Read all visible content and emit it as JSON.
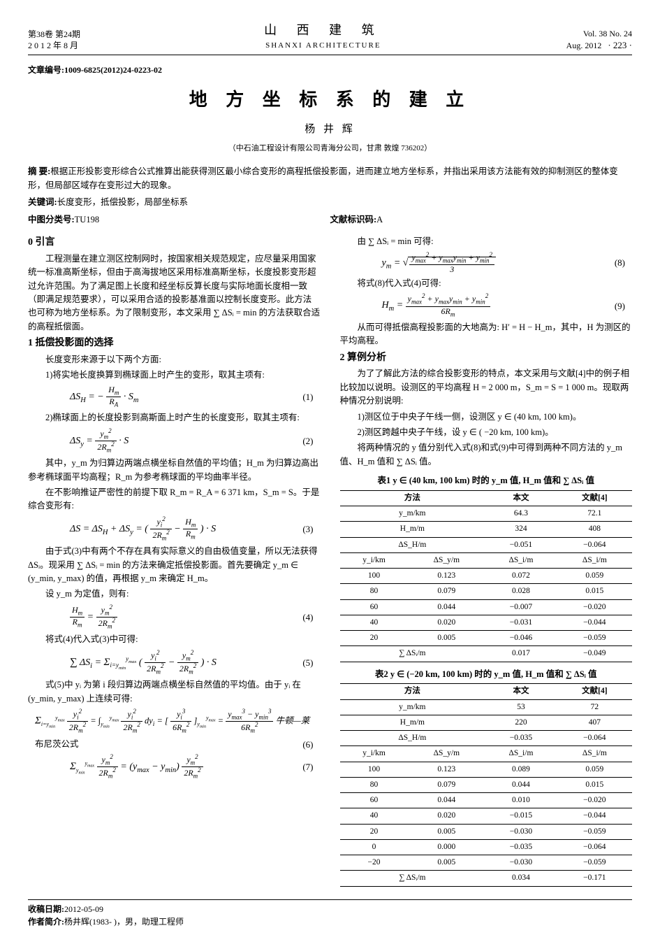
{
  "header": {
    "vol_cn_l1": "第38卷 第24期",
    "vol_cn_l2": "2 0 1 2 年 8 月",
    "journal_cn": "山 西 建 筑",
    "journal_en": "SHANXI  ARCHITECTURE",
    "vol_en_l1": "Vol. 38 No. 24",
    "vol_en_l2": "Aug.  2012",
    "page": "· 223 ·"
  },
  "article_id": "文章编号:1009-6825(2012)24-0223-02",
  "title": "地 方 坐 标 系 的 建 立",
  "author": "杨 井 辉",
  "affiliation": "（中石油工程设计有限公司青海分公司，甘肃 敦煌  736202）",
  "abstract_label": "摘  要:",
  "abstract_text": "根据正形投影变形综合公式推算出能获得测区最小综合变形的高程抵偿投影面，进而建立地方坐标系，并指出采用该方法能有效的抑制测区的整体变形，但局部区域存在变形过大的现象。",
  "keywords_label": "关键词:",
  "keywords": "长度变形，抵偿投影，局部坐标系",
  "clc_label": "中图分类号:",
  "clc": "TU198",
  "doc_code_label": "文献标识码:",
  "doc_code": "A",
  "sec0_title": "0  引言",
  "sec0_p1": "工程测量在建立测区控制网时，按国家相关规范规定，应尽量采用国家统一标准高斯坐标，但由于高海拔地区采用标准高斯坐标，长度投影变形超过允许范围。为了满足图上长度和经坐标反算长度与实际地面长度相一致（即满足规范要求），可以采用合适的投影基准面以控制长度变形。此方法也可称为地方坐标系。为了限制变形，本文采用 ∑ ΔSᵢ = min 的方法获取合适的高程抵偿面。",
  "sec1_title": "1  抵偿投影面的选择",
  "sec1_p1": "长度变形来源于以下两个方面:",
  "sec1_p2": "1)将实地长度换算到椭球面上时产生的变形，取其主项有:",
  "eq1": {
    "text": "ΔS_H = − (H_m / R_A) · S_m",
    "num": "(1)"
  },
  "sec1_p3": "2)椭球面上的长度投影到高斯面上时产生的长度变形，取其主项有:",
  "eq2": {
    "text": "ΔS_y = (y_m² / 2R_m²) · S",
    "num": "(2)"
  },
  "sec1_p4": "其中，y_m 为归算边两端点横坐标自然值的平均值；H_m 为归算边高出参考椭球面平均高程；R_m 为参考椭球面的平均曲率半径。",
  "sec1_p5": "在不影响推证严密性的前提下取 R_m = R_A = 6 371 km，S_m = S。于是综合变形有:",
  "eq3": {
    "text": "ΔS = ΔS_H + ΔS_y = ( y_i² / 2R_m² − H_m / R_m ) · S",
    "num": "(3)"
  },
  "sec1_p6": "由于式(3)中有两个不存在具有实际意义的自由极值变量，所以无法获得 ΔSᵢ。现采用 ∑ ΔSᵢ = min 的方法来确定抵偿投影面。首先要确定 y_m ∈ (y_min, y_max) 的值，再根据 y_m 来确定 H_m。",
  "sec1_p7": "设 y_m 为定值，则有:",
  "eq4": {
    "text": "H_m / R_m = y_m² / 2R_m²",
    "num": "(4)"
  },
  "sec1_p8": "将式(4)代入式(3)中可得:",
  "eq5": {
    "text": "∑ ΔSᵢ = Σ_{i=y_min}^{y_max} ( y_i² / 2R_m² − y_m² / 2R_m² ) · S",
    "num": "(5)"
  },
  "sec1_p9": "式(5)中 yᵢ 为第 i 段归算边两端点横坐标自然值的平均值。由于 yᵢ 在 (y_min, y_max) 上连续可得:",
  "eq6": {
    "text": "Σ_{i=y_min}^{y_max} y_i²/2R_m² = ∫_{y_min}^{y_max} y_i²/2R_m² dy_i = [ y_i³/6R_m² ]_{y_min}^{y_max} = (y_max³ − y_min³)/6R_m²  牛顿—莱布尼茨公式",
    "num": "(6)"
  },
  "eq7": {
    "text": "Σ_{y_min}^{y_max} y_m²/2R_m² = (y_max − y_min) y_m²/2R_m²",
    "num": "(7)"
  },
  "rcol_p1": "由 ∑ ΔSᵢ = min 可得:",
  "eq8": {
    "text": "y_m = √( (y_max² + y_max y_min + y_min²) / 3 )",
    "num": "(8)"
  },
  "rcol_p2": "将式(8)代入式(4)可得:",
  "eq9": {
    "text": "H_m = (y_max² + y_max y_min + y_min²) / 6R_m",
    "num": "(9)"
  },
  "rcol_p3": "从而可得抵偿高程投影面的大地高为: H′ = H − H_m，其中，H 为测区的平均高程。",
  "sec2_title": "2  算例分析",
  "sec2_p1": "为了了解此方法的综合投影变形的特点，本文采用与文献[4]中的例子相比较加以说明。设测区的平均高程 H = 2 000 m，S_m = S = 1 000 m。现取两种情况分别说明:",
  "sec2_li1": "1)测区位于中央子午线一侧，设测区 y ∈ (40 km, 100 km)。",
  "sec2_li2": "2)测区跨越中央子午线，设 y ∈ ( −20 km, 100 km)。",
  "sec2_p2": "将两种情况的 y 值分别代入式(8)和式(9)中可得到两种不同方法的 y_m 值、H_m 值和 ∑ ΔSᵢ 值。",
  "table1": {
    "title": "表1  y ∈ (40 km, 100 km) 时的 y_m 值, H_m 值和 ∑ ΔSᵢ 值",
    "head": [
      "方法",
      "本文",
      "文献[4]"
    ],
    "meta_rows": [
      [
        "y_m/km",
        "64.3",
        "72.1"
      ],
      [
        "H_m/m",
        "324",
        "408"
      ],
      [
        "ΔS_H/m",
        "−0.051",
        "−0.064"
      ]
    ],
    "subhead": [
      "y_i/km",
      "ΔS_y/m",
      "ΔS_i/m",
      "ΔS_i/m"
    ],
    "rows": [
      [
        "100",
        "0.123",
        "0.072",
        "0.059"
      ],
      [
        "80",
        "0.079",
        "0.028",
        "0.015"
      ],
      [
        "60",
        "0.044",
        "−0.007",
        "−0.020"
      ],
      [
        "40",
        "0.020",
        "−0.031",
        "−0.044"
      ],
      [
        "20",
        "0.005",
        "−0.046",
        "−0.059"
      ]
    ],
    "sum": [
      "∑ ΔSᵢ/m",
      "0.017",
      "−0.049"
    ]
  },
  "table2": {
    "title": "表2  y ∈ (−20 km, 100 km) 时的 y_m 值, H_m 值和 ∑ ΔSᵢ 值",
    "head": [
      "方法",
      "本文",
      "文献[4]"
    ],
    "meta_rows": [
      [
        "y_m/km",
        "53",
        "72"
      ],
      [
        "H_m/m",
        "220",
        "407"
      ],
      [
        "ΔS_H/m",
        "−0.035",
        "−0.064"
      ]
    ],
    "subhead": [
      "y_i/km",
      "ΔS_y/m",
      "ΔS_i/m",
      "ΔS_i/m"
    ],
    "rows": [
      [
        "100",
        "0.123",
        "0.089",
        "0.059"
      ],
      [
        "80",
        "0.079",
        "0.044",
        "0.015"
      ],
      [
        "60",
        "0.044",
        "0.010",
        "−0.020"
      ],
      [
        "40",
        "0.020",
        "−0.015",
        "−0.044"
      ],
      [
        "20",
        "0.005",
        "−0.030",
        "−0.059"
      ],
      [
        "0",
        "0.000",
        "−0.035",
        "−0.064"
      ],
      [
        "−20",
        "0.005",
        "−0.030",
        "−0.059"
      ]
    ],
    "sum": [
      "∑ ΔSᵢ/m",
      "0.034",
      "−0.171"
    ]
  },
  "footer": {
    "recv_label": "收稿日期:",
    "recv": "2012-05-09",
    "author_label": "作者简介:",
    "author_info": "杨井辉(1983- )，男，助理工程师"
  }
}
